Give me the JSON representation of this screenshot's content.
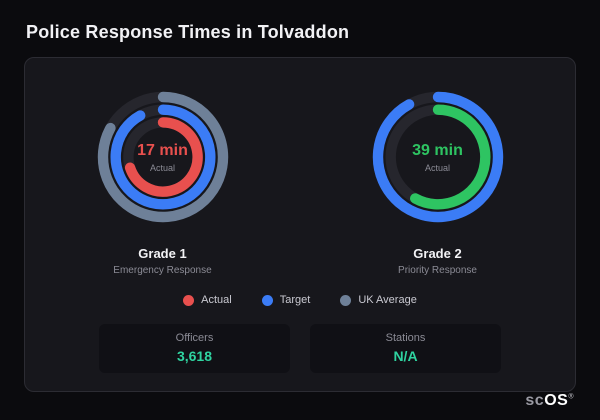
{
  "page": {
    "title": "Police Response Times in Tolvaddon"
  },
  "colors": {
    "page_bg": "#0b0b0e",
    "card_bg": "#17171c",
    "card_border": "#2c2c33",
    "stat_bg": "#101015",
    "text_primary": "#f2f2f5",
    "text_muted": "#8b8b95",
    "actual_red": "#e8504e",
    "target_blue": "#3b7cf6",
    "uk_average_slate": "#6e8098",
    "actual_green": "#2ec462",
    "stat_value": "#2fd3a0"
  },
  "chart_data": {
    "type": "radial",
    "title": "Police Response Times in Tolvaddon",
    "legend_position": "bottom",
    "gauges": [
      {
        "name": "Grade 1",
        "subtitle": "Emergency Response",
        "center_value": "17 min",
        "center_label": "Actual",
        "center_color": "#e8504e",
        "rings": [
          {
            "name": "UK Average",
            "color": "#6e8098",
            "fraction": 0.83
          },
          {
            "name": "Target",
            "color": "#3b7cf6",
            "fraction": 0.92
          },
          {
            "name": "Actual",
            "color": "#e8504e",
            "fraction": 0.7
          }
        ]
      },
      {
        "name": "Grade 2",
        "subtitle": "Priority Response",
        "center_value": "39 min",
        "center_label": "Actual",
        "center_color": "#2ec462",
        "rings": [
          {
            "name": "Target",
            "color": "#3b7cf6",
            "fraction": 0.92
          },
          {
            "name": "Actual",
            "color": "#2ec462",
            "fraction": 0.58
          }
        ]
      }
    ]
  },
  "legend": [
    {
      "label": "Actual",
      "color": "#e8504e"
    },
    {
      "label": "Target",
      "color": "#3b7cf6"
    },
    {
      "label": "UK Average",
      "color": "#6e8098"
    }
  ],
  "stats": [
    {
      "label": "Officers",
      "value": "3,618"
    },
    {
      "label": "Stations",
      "value": "N/A"
    }
  ],
  "brand": {
    "prefix": "sc",
    "suffix": "OS",
    "mark": "®"
  }
}
